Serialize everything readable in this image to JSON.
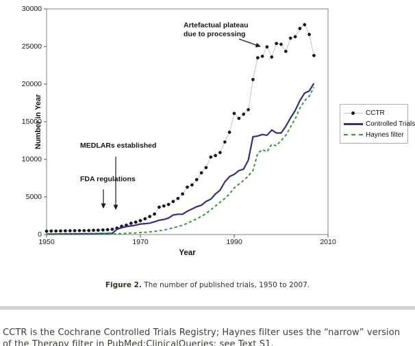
{
  "figure": {
    "caption_label": "Figure 2.",
    "caption_text": " The number of published trials, 1950 to 2007."
  },
  "footer": {
    "line1": "CCTR is the Cochrane Controlled Trials Registry; Haynes filter uses the “narrow” version",
    "line2": "of the Therapy filter in PubMed:ClinicalQueries; see Text S1."
  },
  "chart_data": {
    "type": "line",
    "title": "",
    "xlabel": "Year",
    "ylabel": "Number in Year",
    "xlim": [
      1950,
      2010
    ],
    "ylim": [
      0,
      30000
    ],
    "x_ticks": [
      1950,
      1970,
      1990,
      2010
    ],
    "y_ticks": [
      0,
      5000,
      10000,
      15000,
      20000,
      25000,
      30000
    ],
    "grid": false,
    "legend_position": "right",
    "x": [
      1950,
      1951,
      1952,
      1953,
      1954,
      1955,
      1956,
      1957,
      1958,
      1959,
      1960,
      1961,
      1962,
      1963,
      1964,
      1965,
      1966,
      1967,
      1968,
      1969,
      1970,
      1971,
      1972,
      1973,
      1974,
      1975,
      1976,
      1977,
      1978,
      1979,
      1980,
      1981,
      1982,
      1983,
      1984,
      1985,
      1986,
      1987,
      1988,
      1989,
      1990,
      1991,
      1992,
      1993,
      1994,
      1995,
      1996,
      1997,
      1998,
      1999,
      2000,
      2001,
      2002,
      2003,
      2004,
      2005,
      2006,
      2007
    ],
    "series": [
      {
        "name": "CCTR",
        "style": "marker-line",
        "marker_color": "#17171f",
        "line_color": "#c2c2d2",
        "values": [
          450,
          460,
          470,
          480,
          490,
          500,
          510,
          520,
          530,
          540,
          560,
          580,
          610,
          650,
          700,
          850,
          1100,
          1250,
          1500,
          1650,
          1850,
          2100,
          2400,
          2730,
          3640,
          3800,
          4000,
          4400,
          4800,
          5400,
          6300,
          6600,
          7300,
          8200,
          8900,
          10300,
          10500,
          10900,
          12300,
          13600,
          16100,
          15450,
          16000,
          16600,
          20600,
          23500,
          23700,
          24950,
          23600,
          25400,
          25300,
          24350,
          26100,
          26300,
          27400,
          27900,
          26600,
          23800
        ]
      },
      {
        "name": "Controlled Trials",
        "style": "solid",
        "line_color": "#2b2f8a",
        "values": [
          60,
          60,
          70,
          70,
          80,
          80,
          90,
          90,
          100,
          100,
          110,
          120,
          130,
          140,
          160,
          700,
          900,
          1050,
          1150,
          1250,
          1400,
          1450,
          1520,
          1700,
          1900,
          2000,
          2200,
          2600,
          2700,
          2700,
          3100,
          3400,
          3700,
          3900,
          4400,
          4700,
          5400,
          5900,
          7000,
          7700,
          8000,
          8500,
          8700,
          9900,
          13000,
          13100,
          13300,
          13200,
          13900,
          13500,
          13500,
          14400,
          15500,
          16500,
          17800,
          18800,
          19100,
          20100
        ]
      },
      {
        "name": "Haynes filter",
        "style": "dashed",
        "line_color": "#2f9b35",
        "values": [
          10,
          10,
          15,
          15,
          20,
          20,
          25,
          25,
          30,
          30,
          35,
          40,
          45,
          50,
          60,
          100,
          130,
          160,
          190,
          220,
          260,
          300,
          350,
          420,
          500,
          600,
          750,
          900,
          1050,
          1250,
          1500,
          1800,
          2100,
          2400,
          2800,
          3300,
          3800,
          4300,
          4800,
          5400,
          6200,
          6700,
          7200,
          7800,
          8500,
          10800,
          11300,
          11000,
          12000,
          11800,
          12500,
          13200,
          14300,
          15400,
          16800,
          17800,
          18400,
          19600
        ]
      }
    ],
    "annotations": {
      "plateau_line1": "Artefactual plateau",
      "plateau_line2": "due to processing",
      "medlars": "MEDLARs established",
      "fda": "FDA regulations"
    }
  }
}
